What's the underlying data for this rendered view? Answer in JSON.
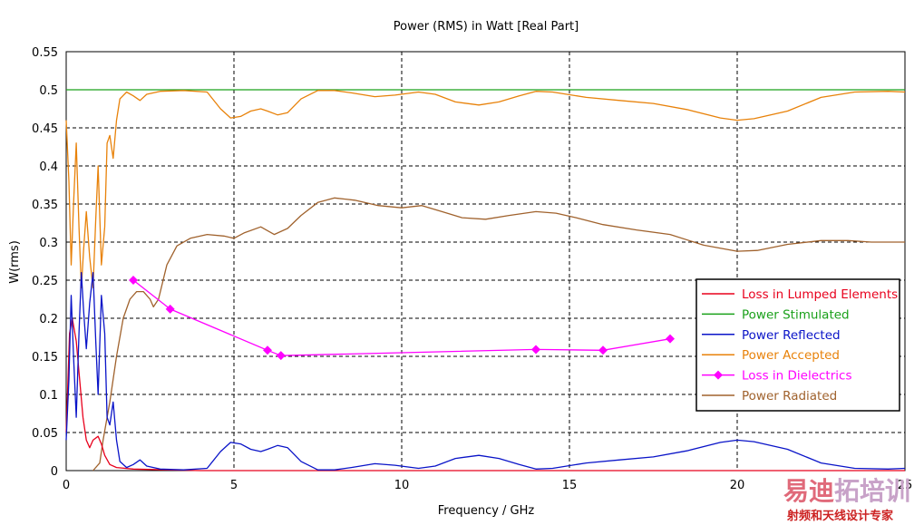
{
  "chart_data": {
    "type": "line",
    "title": "Power (RMS) in Watt [Real Part]",
    "xlabel": "Frequency / GHz",
    "ylabel": "W(rms)",
    "xlim": [
      0,
      25
    ],
    "ylim": [
      0,
      0.55
    ],
    "x_ticks": [
      "0",
      "5",
      "10",
      "15",
      "20",
      "25"
    ],
    "y_ticks": [
      "0",
      "0.05",
      "0.1",
      "0.15",
      "0.2",
      "0.25",
      "0.3",
      "0.35",
      "0.4",
      "0.45",
      "0.5",
      "0.55"
    ],
    "grid": true,
    "legend_position": "right",
    "series": [
      {
        "name": "Loss in Lumped Elements",
        "color": "#e8001c",
        "marker": "none",
        "points": [
          [
            0,
            0.05
          ],
          [
            0.1,
            0.18
          ],
          [
            0.18,
            0.2
          ],
          [
            0.3,
            0.17
          ],
          [
            0.4,
            0.12
          ],
          [
            0.5,
            0.07
          ],
          [
            0.6,
            0.04
          ],
          [
            0.7,
            0.03
          ],
          [
            0.8,
            0.04
          ],
          [
            0.95,
            0.045
          ],
          [
            1.05,
            0.035
          ],
          [
            1.15,
            0.02
          ],
          [
            1.3,
            0.008
          ],
          [
            1.5,
            0.004
          ],
          [
            2,
            0.002
          ],
          [
            3,
            0.001
          ],
          [
            4,
            0
          ],
          [
            25,
            0
          ]
        ]
      },
      {
        "name": "Power Stimulated",
        "color": "#1aa01a",
        "marker": "none",
        "points": [
          [
            0,
            0.5
          ],
          [
            25,
            0.5
          ]
        ]
      },
      {
        "name": "Power Reflected",
        "color": "#0a14c8",
        "marker": "none",
        "points": [
          [
            0,
            0.04
          ],
          [
            0.08,
            0.12
          ],
          [
            0.15,
            0.23
          ],
          [
            0.22,
            0.15
          ],
          [
            0.3,
            0.07
          ],
          [
            0.38,
            0.18
          ],
          [
            0.45,
            0.26
          ],
          [
            0.52,
            0.21
          ],
          [
            0.6,
            0.16
          ],
          [
            0.7,
            0.22
          ],
          [
            0.8,
            0.26
          ],
          [
            0.88,
            0.17
          ],
          [
            0.95,
            0.1
          ],
          [
            1.05,
            0.23
          ],
          [
            1.15,
            0.18
          ],
          [
            1.22,
            0.07
          ],
          [
            1.3,
            0.06
          ],
          [
            1.4,
            0.09
          ],
          [
            1.5,
            0.04
          ],
          [
            1.6,
            0.012
          ],
          [
            1.8,
            0.004
          ],
          [
            2,
            0.008
          ],
          [
            2.2,
            0.014
          ],
          [
            2.4,
            0.006
          ],
          [
            2.8,
            0.002
          ],
          [
            3.5,
            0.001
          ],
          [
            4.2,
            0.003
          ],
          [
            4.6,
            0.025
          ],
          [
            4.9,
            0.037
          ],
          [
            5.2,
            0.035
          ],
          [
            5.5,
            0.028
          ],
          [
            5.8,
            0.025
          ],
          [
            6.0,
            0.028
          ],
          [
            6.3,
            0.033
          ],
          [
            6.6,
            0.03
          ],
          [
            7,
            0.012
          ],
          [
            7.5,
            0.001
          ],
          [
            8,
            0.001
          ],
          [
            8.5,
            0.004
          ],
          [
            9.2,
            0.009
          ],
          [
            9.8,
            0.007
          ],
          [
            10.5,
            0.003
          ],
          [
            11,
            0.006
          ],
          [
            11.6,
            0.016
          ],
          [
            12.3,
            0.02
          ],
          [
            12.9,
            0.016
          ],
          [
            13.5,
            0.008
          ],
          [
            14,
            0.002
          ],
          [
            14.5,
            0.003
          ],
          [
            15.5,
            0.01
          ],
          [
            16.5,
            0.014
          ],
          [
            17.5,
            0.018
          ],
          [
            18.5,
            0.026
          ],
          [
            19.5,
            0.037
          ],
          [
            20,
            0.04
          ],
          [
            20.5,
            0.038
          ],
          [
            21.5,
            0.028
          ],
          [
            22.5,
            0.01
          ],
          [
            23.5,
            0.003
          ],
          [
            24.5,
            0.002
          ],
          [
            25,
            0.003
          ]
        ]
      },
      {
        "name": "Power Accepted",
        "color": "#e8820a",
        "marker": "none",
        "points": [
          [
            0,
            0.46
          ],
          [
            0.08,
            0.38
          ],
          [
            0.15,
            0.27
          ],
          [
            0.22,
            0.35
          ],
          [
            0.3,
            0.43
          ],
          [
            0.38,
            0.32
          ],
          [
            0.45,
            0.24
          ],
          [
            0.52,
            0.29
          ],
          [
            0.6,
            0.34
          ],
          [
            0.7,
            0.28
          ],
          [
            0.8,
            0.24
          ],
          [
            0.88,
            0.33
          ],
          [
            0.95,
            0.4
          ],
          [
            1.05,
            0.27
          ],
          [
            1.15,
            0.32
          ],
          [
            1.22,
            0.43
          ],
          [
            1.3,
            0.44
          ],
          [
            1.4,
            0.41
          ],
          [
            1.5,
            0.46
          ],
          [
            1.6,
            0.488
          ],
          [
            1.8,
            0.497
          ],
          [
            2,
            0.492
          ],
          [
            2.2,
            0.486
          ],
          [
            2.4,
            0.494
          ],
          [
            2.8,
            0.498
          ],
          [
            3.5,
            0.499
          ],
          [
            4.2,
            0.497
          ],
          [
            4.6,
            0.475
          ],
          [
            4.9,
            0.463
          ],
          [
            5.2,
            0.465
          ],
          [
            5.5,
            0.472
          ],
          [
            5.8,
            0.475
          ],
          [
            6.0,
            0.472
          ],
          [
            6.3,
            0.467
          ],
          [
            6.6,
            0.47
          ],
          [
            7,
            0.488
          ],
          [
            7.5,
            0.499
          ],
          [
            8,
            0.499
          ],
          [
            8.5,
            0.496
          ],
          [
            9.2,
            0.491
          ],
          [
            9.8,
            0.493
          ],
          [
            10.5,
            0.497
          ],
          [
            11,
            0.494
          ],
          [
            11.6,
            0.484
          ],
          [
            12.3,
            0.48
          ],
          [
            12.9,
            0.484
          ],
          [
            13.5,
            0.492
          ],
          [
            14,
            0.498
          ],
          [
            14.5,
            0.497
          ],
          [
            15.5,
            0.49
          ],
          [
            16.5,
            0.486
          ],
          [
            17.5,
            0.482
          ],
          [
            18.5,
            0.474
          ],
          [
            19.5,
            0.463
          ],
          [
            20,
            0.46
          ],
          [
            20.5,
            0.462
          ],
          [
            21.5,
            0.472
          ],
          [
            22.5,
            0.49
          ],
          [
            23.5,
            0.497
          ],
          [
            24.5,
            0.498
          ],
          [
            25,
            0.497
          ]
        ]
      },
      {
        "name": "Loss in Dielectrics",
        "color": "#ff00ff",
        "marker": "diamond",
        "points": [
          [
            2,
            0.25
          ],
          [
            3.1,
            0.212
          ],
          [
            6,
            0.158
          ],
          [
            6.4,
            0.151
          ],
          [
            14,
            0.159
          ],
          [
            16,
            0.158
          ],
          [
            18,
            0.173
          ]
        ]
      },
      {
        "name": "Power Radiated",
        "color": "#a0622d",
        "marker": "none",
        "points": [
          [
            0.8,
            0
          ],
          [
            1.0,
            0.01
          ],
          [
            1.1,
            0.04
          ],
          [
            1.3,
            0.09
          ],
          [
            1.5,
            0.15
          ],
          [
            1.7,
            0.2
          ],
          [
            1.9,
            0.225
          ],
          [
            2.1,
            0.235
          ],
          [
            2.3,
            0.235
          ],
          [
            2.5,
            0.225
          ],
          [
            2.6,
            0.215
          ],
          [
            2.75,
            0.225
          ],
          [
            3.0,
            0.27
          ],
          [
            3.3,
            0.295
          ],
          [
            3.7,
            0.305
          ],
          [
            4.2,
            0.31
          ],
          [
            4.7,
            0.308
          ],
          [
            5.0,
            0.305
          ],
          [
            5.3,
            0.312
          ],
          [
            5.8,
            0.32
          ],
          [
            6.2,
            0.31
          ],
          [
            6.6,
            0.318
          ],
          [
            7.0,
            0.335
          ],
          [
            7.5,
            0.352
          ],
          [
            8.0,
            0.358
          ],
          [
            8.6,
            0.355
          ],
          [
            9.3,
            0.348
          ],
          [
            10.0,
            0.345
          ],
          [
            10.6,
            0.348
          ],
          [
            11.2,
            0.34
          ],
          [
            11.8,
            0.332
          ],
          [
            12.5,
            0.33
          ],
          [
            13.2,
            0.335
          ],
          [
            14.0,
            0.34
          ],
          [
            14.6,
            0.338
          ],
          [
            15.2,
            0.332
          ],
          [
            16.0,
            0.323
          ],
          [
            17.0,
            0.316
          ],
          [
            18.0,
            0.31
          ],
          [
            19.0,
            0.296
          ],
          [
            20.0,
            0.288
          ],
          [
            20.6,
            0.289
          ],
          [
            21.5,
            0.297
          ],
          [
            22.5,
            0.302
          ],
          [
            23.3,
            0.302
          ],
          [
            24.0,
            0.3
          ],
          [
            25,
            0.3
          ]
        ]
      }
    ]
  },
  "watermark": {
    "main": "易迪拓培训",
    "sub": "射频和天线设计专家",
    "colors": {
      "part1": "#e06a7a",
      "part2": "#c8a2c8",
      "sub": "#cc2222"
    }
  }
}
